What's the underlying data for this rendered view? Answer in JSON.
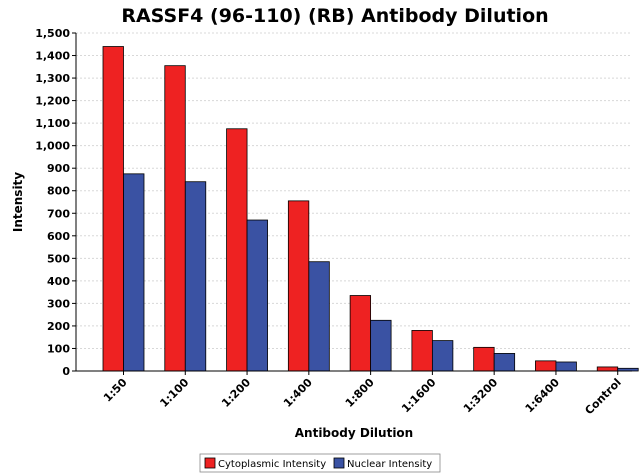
{
  "chart_data": {
    "type": "bar",
    "title": "RASSF4 (96-110) (RB) Antibody Dilution",
    "xlabel": "Antibody Dilution",
    "ylabel": "Intensity",
    "ylim": [
      0,
      1500
    ],
    "yticks": [
      0,
      100,
      200,
      300,
      400,
      500,
      600,
      700,
      800,
      900,
      1000,
      1100,
      1200,
      1300,
      1400,
      1500
    ],
    "ytick_labels": [
      "0",
      "100",
      "200",
      "300",
      "400",
      "500",
      "600",
      "700",
      "800",
      "900",
      "1,000",
      "1,100",
      "1,200",
      "1,300",
      "1,400",
      "1,500"
    ],
    "categories": [
      "1:50",
      "1:100",
      "1:200",
      "1:400",
      "1:800",
      "1:1600",
      "1:3200",
      "1:6400",
      "Control"
    ],
    "series": [
      {
        "name": "Cytoplasmic Intensity",
        "color": "#ee2222",
        "values": [
          1440,
          1355,
          1075,
          755,
          335,
          180,
          105,
          45,
          18
        ]
      },
      {
        "name": "Nuclear Intensity",
        "color": "#3a52a3",
        "values": [
          875,
          840,
          670,
          485,
          225,
          135,
          78,
          40,
          12
        ]
      }
    ],
    "legend": "bottom-center",
    "grid": true
  }
}
